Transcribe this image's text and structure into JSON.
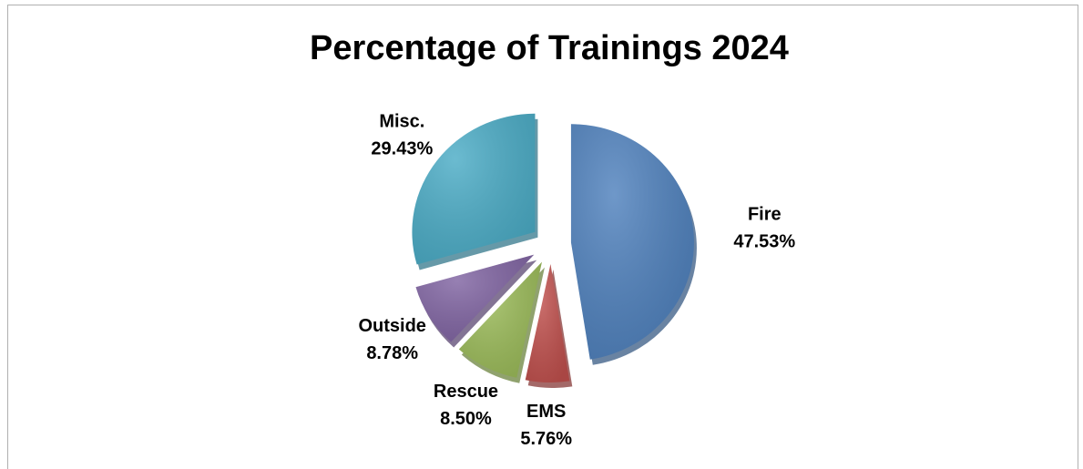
{
  "chart_data": {
    "type": "pie",
    "title": "Percentage of Trainings 2024",
    "categories": [
      "Fire",
      "EMS",
      "Rescue",
      "Outside",
      "Misc."
    ],
    "values": [
      47.53,
      5.76,
      8.5,
      8.78,
      29.43
    ],
    "value_labels": [
      "47.53%",
      "5.76%",
      "8.50%",
      "8.78%",
      "29.43%"
    ],
    "colors": [
      "#4f81bd",
      "#c0504d",
      "#9bbb59",
      "#8064a2",
      "#4bacc6"
    ]
  }
}
